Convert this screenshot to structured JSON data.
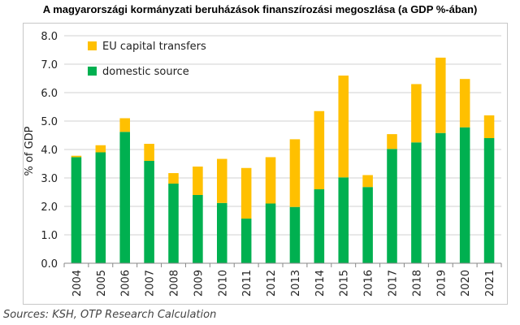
{
  "title": "A magyarországi kormányzati beruházások finanszírozási megoszlása (a GDP %-ában)",
  "source": "Sources: KSH, OTP Research Calculation",
  "colors": {
    "eu": "#FFC000",
    "domestic": "#00B050",
    "grid": "#d0d0d0",
    "axis": "#888888"
  },
  "chart_data": {
    "type": "bar",
    "stacked": true,
    "title": "A magyarországi kormányzati beruházások finanszírozási megoszlása (a GDP %-ában)",
    "ylabel": "% of GDP",
    "xlabel": "",
    "ylim": [
      0,
      8
    ],
    "yticks": [
      "0.0",
      "1.0",
      "2.0",
      "3.0",
      "4.0",
      "5.0",
      "6.0",
      "7.0",
      "8.0"
    ],
    "grid": true,
    "legend_position": "top-left",
    "categories": [
      "2004",
      "2005",
      "2006",
      "2007",
      "2008",
      "2009",
      "2010",
      "2011",
      "2012",
      "2013",
      "2014",
      "2015",
      "2016",
      "2017",
      "2018",
      "2019",
      "2020",
      "2021"
    ],
    "series": [
      {
        "name": "domestic source",
        "color": "#00B050",
        "values": [
          3.73,
          3.9,
          4.62,
          3.6,
          2.8,
          2.4,
          2.12,
          1.57,
          2.1,
          1.98,
          2.6,
          3.02,
          2.68,
          4.02,
          4.25,
          4.58,
          4.78,
          4.4
        ]
      },
      {
        "name": "EU capital transfers",
        "color": "#FFC000",
        "values": [
          0.05,
          0.25,
          0.48,
          0.6,
          0.37,
          1.0,
          1.55,
          1.78,
          1.63,
          2.38,
          2.75,
          3.58,
          0.42,
          0.52,
          2.05,
          2.65,
          1.7,
          0.8
        ]
      }
    ],
    "legend": [
      "EU capital transfers",
      "domestic source"
    ]
  }
}
